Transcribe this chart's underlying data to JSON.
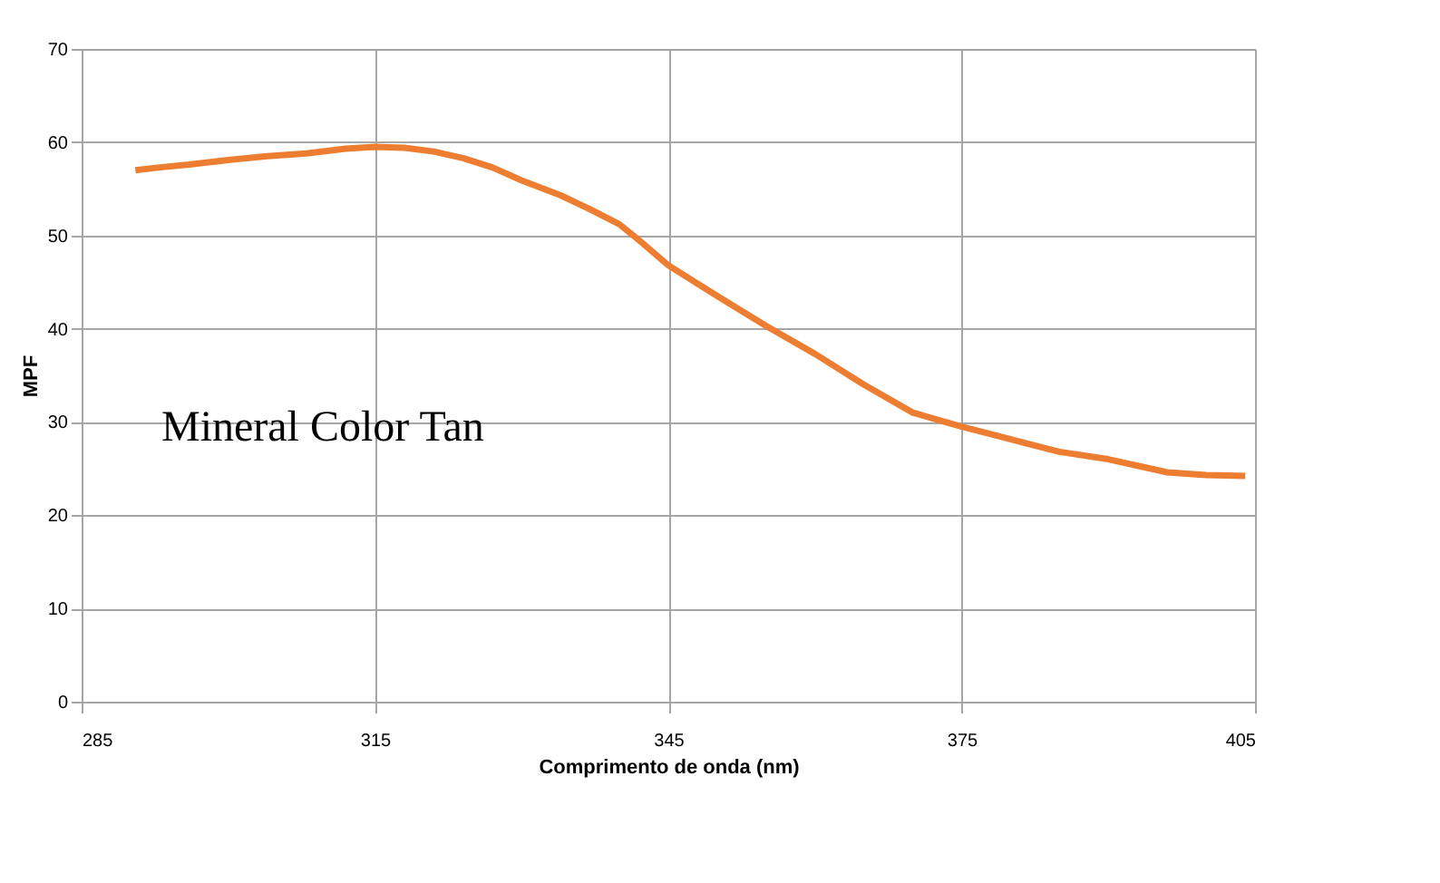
{
  "chart_data": {
    "type": "line",
    "xlabel": "Comprimento de onda (nm)",
    "ylabel": "MPF",
    "xlim": [
      285,
      405
    ],
    "xticks": [
      285,
      315,
      345,
      375,
      405
    ],
    "ylim": [
      0,
      70
    ],
    "yticks": [
      0,
      10,
      20,
      30,
      40,
      50,
      60,
      70
    ],
    "grid": true,
    "legend": false,
    "marker": "none",
    "line_style": "solid",
    "series": [
      {
        "name": "Mineral Color Tan",
        "color": "#ed7d31",
        "x": [
          290.5,
          293,
          296,
          300,
          304,
          308,
          312,
          315,
          318,
          321,
          324,
          327,
          330,
          334,
          337,
          340,
          342,
          345,
          350,
          355,
          360,
          365,
          370,
          375,
          378,
          382,
          385,
          390,
          393,
          396,
          400,
          404
        ],
        "values": [
          57.0,
          57.3,
          57.6,
          58.1,
          58.5,
          58.8,
          59.3,
          59.5,
          59.4,
          59.0,
          58.3,
          57.3,
          55.9,
          54.3,
          52.8,
          51.2,
          49.5,
          46.8,
          43.5,
          40.3,
          37.3,
          34.0,
          31.0,
          29.5,
          28.7,
          27.6,
          26.8,
          26.0,
          25.3,
          24.6,
          24.3,
          24.2
        ]
      }
    ]
  }
}
